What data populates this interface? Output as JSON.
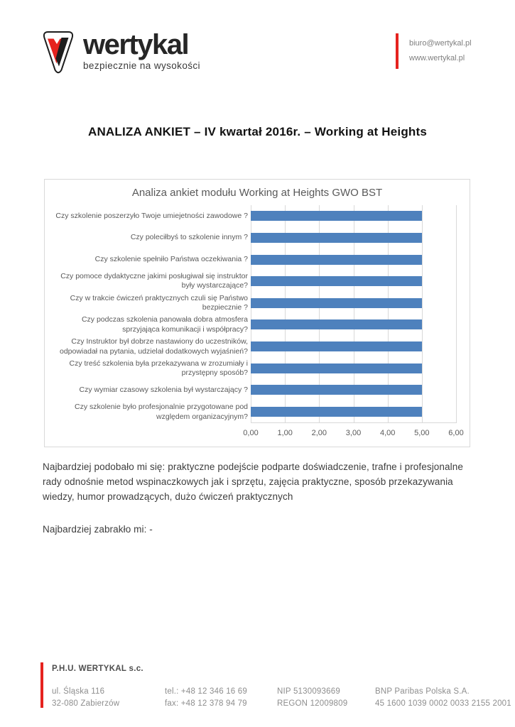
{
  "header": {
    "logo": {
      "brand": "wertykal",
      "tagline": "bezpiecznie na wysokości"
    },
    "contact": {
      "email": "biuro@wertykal.pl",
      "website": "www.wertykal.pl"
    }
  },
  "document_title": "ANALIZA ANKIET – IV kwartał 2016r. – Working at Heights",
  "chart_data": {
    "type": "bar",
    "orientation": "horizontal",
    "title": "Analiza ankiet modułu Working at Heights GWO BST",
    "categories": [
      "Czy szkolenie poszerzyło Twoje umiejetności zawodowe ?",
      "Czy poleciłbyś to szkolenie innym ?",
      "Czy szkolenie spełniło Państwa oczekiwania ?",
      "Czy pomoce dydaktyczne jakimi posługiwał się instruktor były wystarczające?",
      "Czy w trakcie ćwiczeń praktycznych czuli się Państwo bezpiecznie ?",
      "Czy podczas szkolenia panowała dobra atmosfera sprzyjająca komunikacji i współpracy?",
      "Czy Instruktor był dobrze nastawiony do uczestników, odpowiadał na pytania, udzielał dodatkowych wyjaśnień?",
      "Czy treść szkolenia była przekazywana w zrozumiały i przystępny sposób?",
      "Czy wymiar czasowy szkolenia był wystarczający ?",
      "Czy szkolenie było profesjonalnie przygotowane pod względem organizacyjnym?"
    ],
    "values": [
      5.0,
      5.0,
      5.0,
      5.0,
      5.0,
      5.0,
      5.0,
      5.0,
      5.0,
      5.0
    ],
    "xlim": [
      0,
      6
    ],
    "x_ticks": [
      "0,00",
      "1,00",
      "2,00",
      "3,00",
      "4,00",
      "5,00",
      "6,00"
    ],
    "xlabel": "",
    "ylabel": "",
    "grid": true,
    "legend": "none",
    "bar_color": "#4e81bd",
    "gridline_color": "#d9d9d9"
  },
  "body": {
    "liked_most": "Najbardziej podobało mi się: praktyczne podejście podparte doświadczenie, trafne i profesjonalne rady odnośnie metod wspinaczkowych jak i sprzętu, zajęcia praktyczne, sposób przekazywania wiedzy, humor prowadzących, dużo ćwiczeń praktycznych",
    "missing_most": "Najbardziej zabrakło mi: -"
  },
  "footer": {
    "company": "P.H.U. WERTYKAL s.c.",
    "address_line1": "ul. Śląska 116",
    "address_line2": "32-080 Zabierzów",
    "tel": "tel.: +48 12 346 16 69",
    "fax": "fax: +48 12 378 94 79",
    "nip": "NIP 5130093669",
    "regon": "REGON 12009809",
    "bank_name": "BNP Paribas Polska S.A.",
    "bank_account": "45 1600 1039 0002 0033 2155 2001"
  },
  "colors": {
    "accent_red": "#e5231f",
    "bar_blue": "#4e81bd",
    "muted_text": "#595959"
  }
}
